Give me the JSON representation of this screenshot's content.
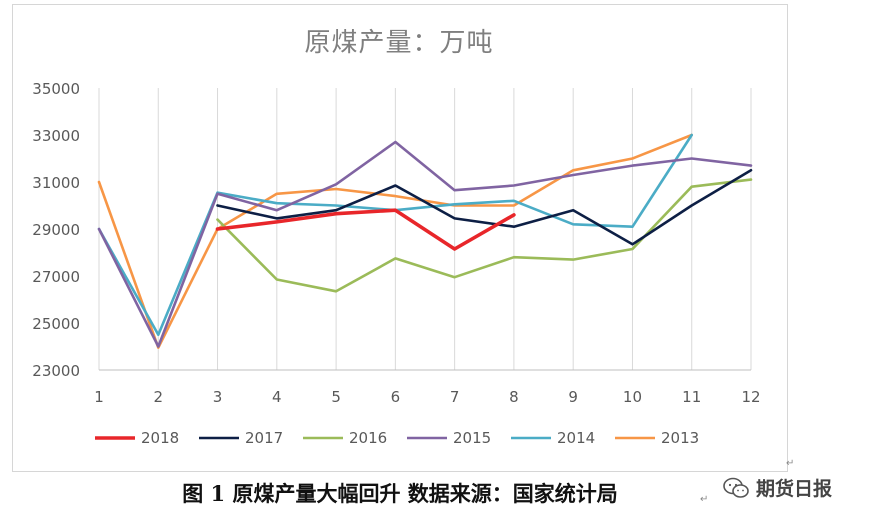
{
  "chart_data": {
    "type": "line",
    "title": "原煤产量：万吨",
    "xlabel": "",
    "ylabel": "",
    "x": [
      1,
      2,
      3,
      4,
      5,
      6,
      7,
      8,
      9,
      10,
      11,
      12
    ],
    "ylim": [
      23000,
      35000
    ],
    "yticks": [
      23000,
      25000,
      27000,
      29000,
      31000,
      33000,
      35000
    ],
    "grid": "vertical",
    "legend_position": "bottom",
    "series": [
      {
        "name": "2018",
        "color": "#e8262a",
        "values": [
          null,
          null,
          29000,
          29300,
          29650,
          29800,
          28150,
          29600,
          null,
          null,
          null,
          null
        ]
      },
      {
        "name": "2017",
        "color": "#0d1f45",
        "values": [
          null,
          null,
          30000,
          29450,
          29800,
          30850,
          29450,
          29100,
          29800,
          28350,
          30000,
          31500
        ]
      },
      {
        "name": "2016",
        "color": "#9bbb59",
        "values": [
          null,
          null,
          29400,
          26850,
          26350,
          27750,
          26950,
          27800,
          27700,
          28150,
          30800,
          31100
        ]
      },
      {
        "name": "2015",
        "color": "#8064a2",
        "values": [
          29000,
          24000,
          30500,
          29800,
          30900,
          32700,
          30650,
          30850,
          31300,
          31700,
          32000,
          31700
        ]
      },
      {
        "name": "2014",
        "color": "#4bacc6",
        "values": [
          29000,
          24500,
          30550,
          30100,
          30000,
          29800,
          30050,
          30200,
          29200,
          29100,
          33000,
          null
        ]
      },
      {
        "name": "2013",
        "color": "#f79646",
        "values": [
          31000,
          23950,
          29000,
          30500,
          30700,
          30400,
          30000,
          30000,
          31500,
          32000,
          33000,
          null
        ]
      }
    ]
  },
  "caption": "图 1  原煤产量大幅回升  数据来源：国家统计局",
  "watermark": "期货日报"
}
